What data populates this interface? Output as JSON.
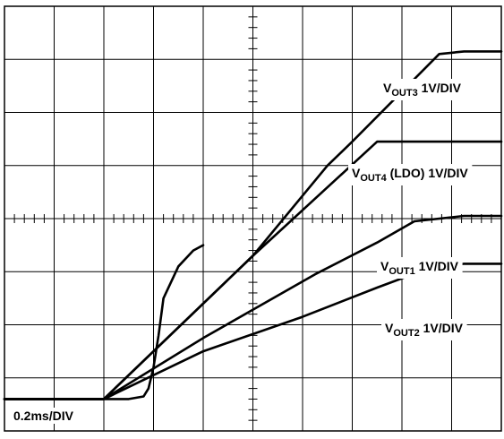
{
  "chart_data": {
    "type": "line",
    "title": "",
    "xlabel": "",
    "ylabel": "",
    "grid": true,
    "x_divisions": 10,
    "y_divisions": 8,
    "x_unit_per_div": "0.2ms",
    "xlim": [
      0,
      2.0
    ],
    "ylim": [
      0,
      8
    ],
    "timebase_label": "0.2ms/DIV",
    "series": [
      {
        "name": "VOUT3 1V/DIV",
        "label_main": "V",
        "label_sub": "OUT3",
        "label_rest": " 1V/DIV",
        "x": [
          0,
          0.35,
          0.4,
          1.0,
          1.3,
          1.4,
          1.75,
          1.85,
          2.0
        ],
        "y": [
          0.6,
          0.6,
          0.6,
          3.3,
          5.0,
          5.45,
          7.1,
          7.15,
          7.15
        ]
      },
      {
        "name": "VOUT4 (LDO) 1V/DIV",
        "label_main": "V",
        "label_sub": "OUT4",
        "label_rest": " (LDO) 1V/DIV",
        "x": [
          0,
          0.35,
          0.4,
          1.0,
          1.5,
          1.55,
          2.0
        ],
        "y": [
          0.6,
          0.6,
          0.6,
          3.3,
          5.45,
          5.45,
          5.45
        ]
      },
      {
        "name": "VOUT1 1V/DIV",
        "label_main": "V",
        "label_sub": "OUT1",
        "label_rest": " 1V/DIV",
        "x": [
          0,
          0.35,
          0.4,
          0.8,
          1.25,
          1.5,
          1.65,
          1.85,
          2.0
        ],
        "y": [
          0.6,
          0.6,
          0.6,
          1.75,
          2.95,
          3.55,
          3.95,
          4.05,
          4.05
        ]
      },
      {
        "name": "VOUT2 1V/DIV",
        "label_main": "V",
        "label_sub": "OUT2",
        "label_rest": " 1V/DIV",
        "x": [
          0,
          0.35,
          0.4,
          0.8,
          1.2,
          1.5,
          1.7,
          1.85,
          2.0
        ],
        "y": [
          0.6,
          0.6,
          0.6,
          1.5,
          2.15,
          2.7,
          3.05,
          3.15,
          3.15
        ]
      },
      {
        "name": "",
        "x": [
          0,
          0.5,
          0.56,
          0.58,
          0.6,
          0.62,
          0.64,
          0.7,
          0.76,
          0.8
        ],
        "y": [
          0.6,
          0.6,
          0.65,
          0.8,
          1.2,
          1.8,
          2.5,
          3.1,
          3.4,
          3.5
        ]
      }
    ]
  }
}
